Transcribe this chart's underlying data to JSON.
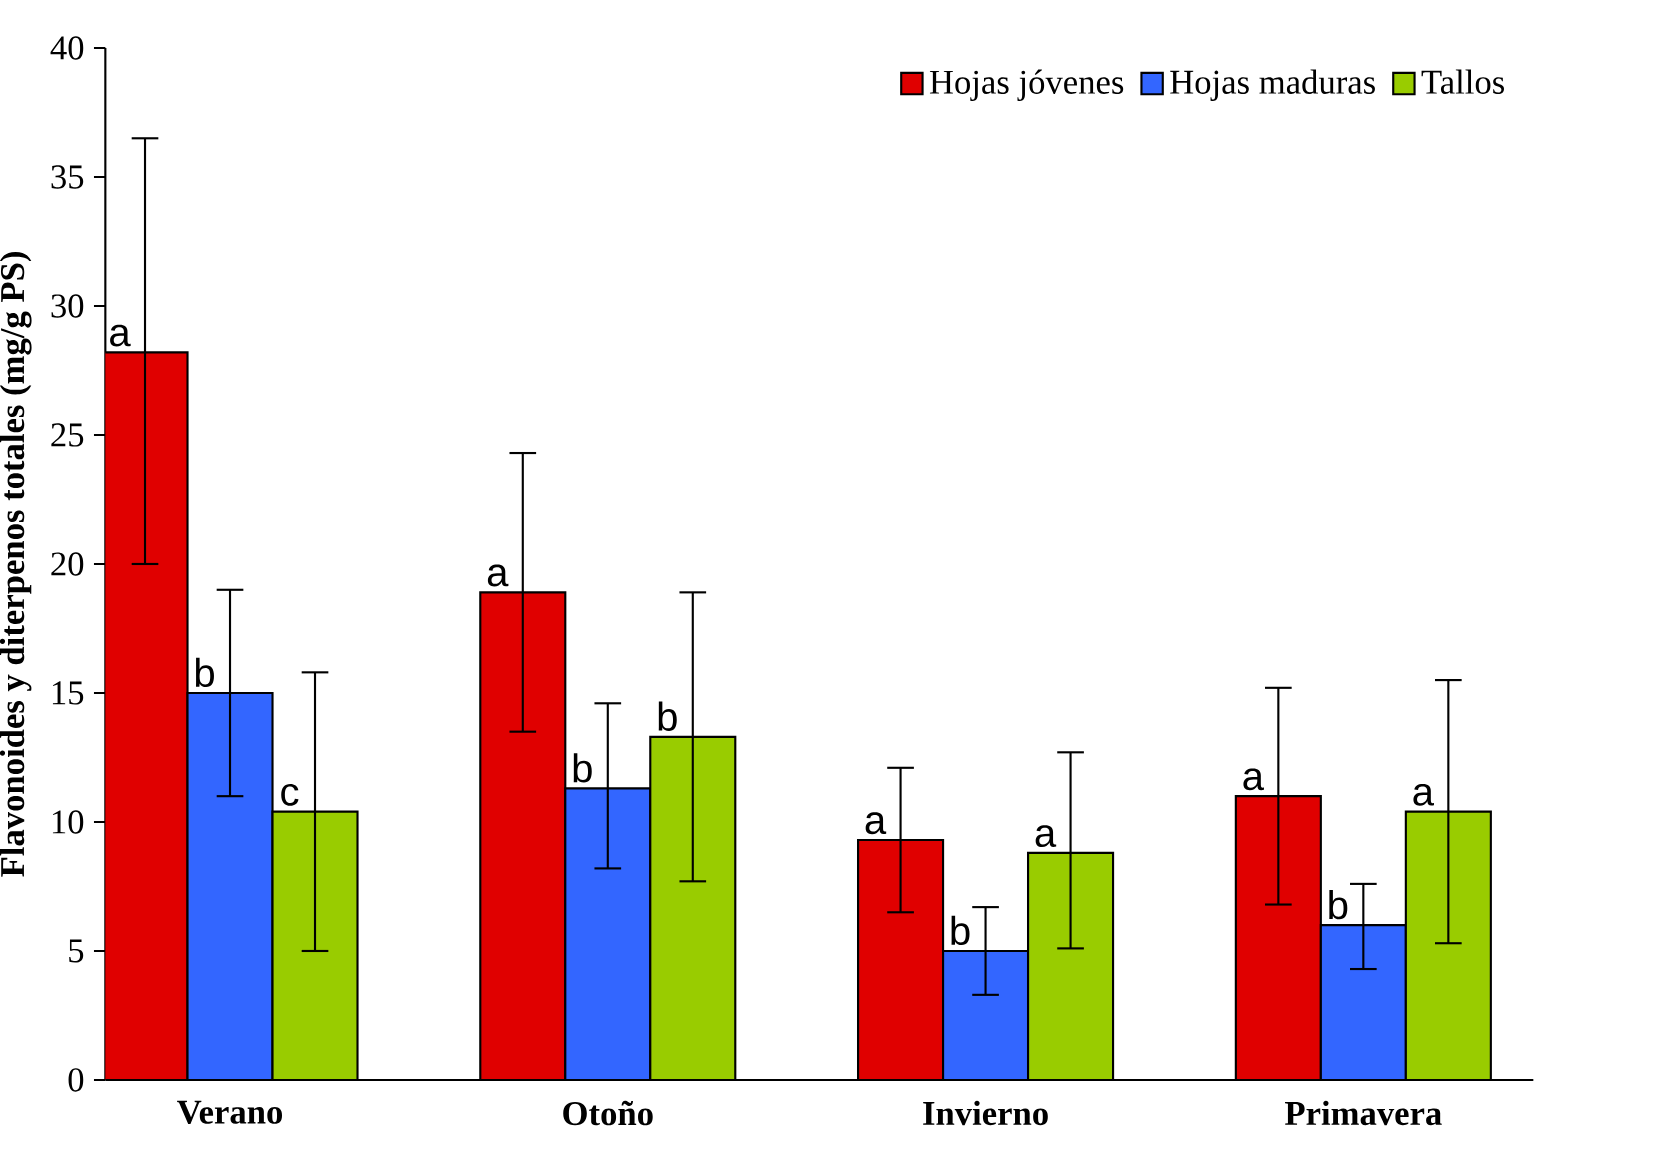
{
  "chart_data": {
    "type": "bar",
    "ylabel": "Flavonoides y diterpenos totales (mg/g PS)",
    "categories": [
      "Verano",
      "Otoño",
      "Invierno",
      "Primavera"
    ],
    "series": [
      {
        "name": "Hojas jóvenes",
        "color": "#e00000",
        "values": [
          28.2,
          18.9,
          9.3,
          11.0
        ],
        "errors": [
          [
            20.0,
            36.5
          ],
          [
            13.5,
            24.3
          ],
          [
            6.5,
            12.1
          ],
          [
            6.8,
            15.2
          ]
        ],
        "value_labels": [
          "a",
          "a",
          "a",
          "a"
        ]
      },
      {
        "name": "Hojas maduras",
        "color": "#3366ff",
        "values": [
          15.0,
          11.3,
          5.0,
          6.0
        ],
        "errors": [
          [
            11.0,
            19.0
          ],
          [
            8.2,
            14.6
          ],
          [
            3.3,
            6.7
          ],
          [
            4.3,
            7.6
          ]
        ],
        "value_labels": [
          "b",
          "b",
          "b",
          "b"
        ]
      },
      {
        "name": "Tallos",
        "color": "#99cc00",
        "values": [
          10.4,
          13.3,
          8.8,
          10.4
        ],
        "errors": [
          [
            5.0,
            15.8
          ],
          [
            7.7,
            18.9
          ],
          [
            5.1,
            12.7
          ],
          [
            5.3,
            15.5
          ]
        ],
        "value_labels": [
          "c",
          "b",
          "a",
          "a"
        ]
      }
    ],
    "ylim": [
      0,
      40
    ],
    "yticks": [
      0,
      5,
      10,
      15,
      20,
      25,
      30,
      35,
      40
    ],
    "legend": "top right"
  }
}
